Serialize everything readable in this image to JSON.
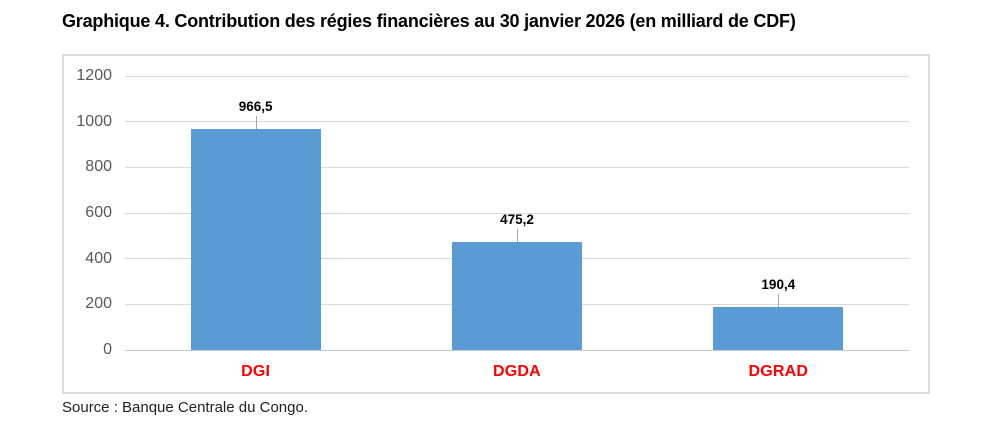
{
  "page": {
    "title": "Graphique 4. Contribution des régies financières au 30 janvier 2026 (en milliard de CDF)",
    "source": "Source : Banque Centrale du Congo."
  },
  "chart_data": {
    "type": "bar",
    "title": "Graphique 4. Contribution des régies financières au 30 janvier 2026 (en milliard de CDF)",
    "categories": [
      "DGI",
      "DGDA",
      "DGRAD"
    ],
    "values": [
      966.5,
      475.2,
      190.4
    ],
    "value_labels": [
      "966,5",
      "475,2",
      "190,4"
    ],
    "xlabel": "",
    "ylabel": "",
    "ylim": [
      0,
      1200
    ],
    "yticks": [
      0,
      200,
      400,
      600,
      800,
      1000,
      1200
    ],
    "grid": true,
    "legend": false,
    "colors": {
      "bar": "#5B9BD5",
      "category_label": "#FF0000",
      "value_label": "#000000",
      "gridline": "#D9D9D9",
      "zero_line": "#C9C9C9",
      "axis_label": "#595959",
      "frame_border": "#DBDBDB",
      "leader_line": "#A6A6A6"
    },
    "source": "Source : Banque Centrale du Congo."
  }
}
